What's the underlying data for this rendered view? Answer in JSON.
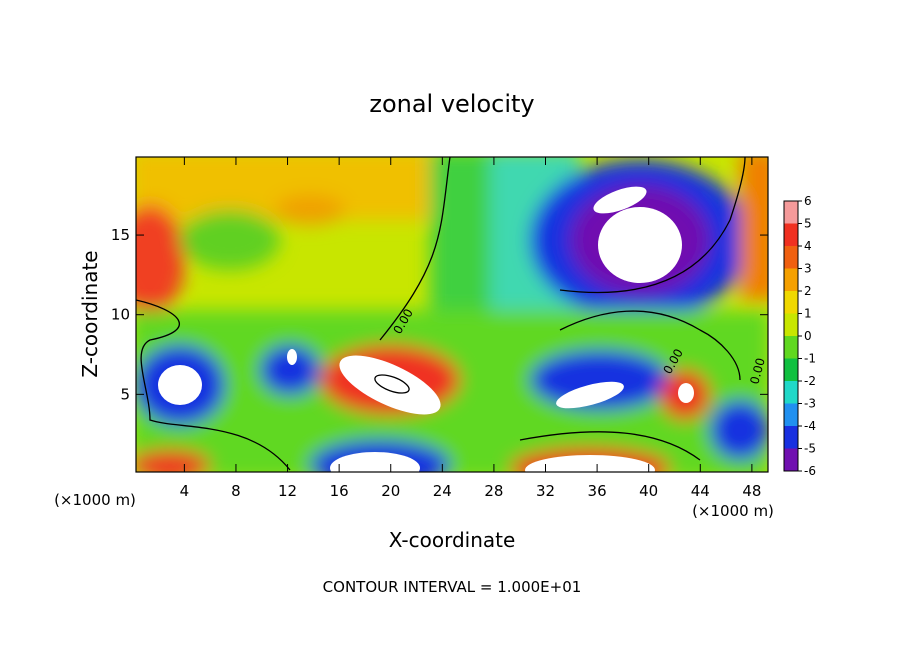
{
  "chart_data": {
    "type": "contour",
    "title": "zonal velocity",
    "x_label": "X-coordinate",
    "y_label": "Z-coordinate",
    "x_unit": "(×1000 m)",
    "y_unit": "(×1000 m)",
    "footer": "CONTOUR INTERVAL = 1.000E+01",
    "contour_labels": [
      "0.00",
      "0.00",
      "0.00"
    ],
    "xlim": [
      0.25,
      49.25
    ],
    "xticks": [
      4,
      8,
      12,
      16,
      20,
      24,
      28,
      32,
      36,
      40,
      44,
      48
    ],
    "ylim": [
      0.125,
      19.9
    ],
    "yticks": [
      5,
      10,
      15
    ],
    "colorbar": {
      "lim": [
        -6,
        6
      ],
      "ticks": [
        6,
        5,
        4,
        3,
        2,
        1,
        0,
        -1,
        -2,
        -3,
        -4,
        -5,
        -6
      ],
      "colors": [
        "#f59a9a",
        "#f03020",
        "#f06010",
        "#f5a000",
        "#f0d800",
        "#c8e600",
        "#60d820",
        "#10c040",
        "#20d8c8",
        "#2090f0",
        "#1830e0",
        "#7010b0"
      ]
    }
  }
}
